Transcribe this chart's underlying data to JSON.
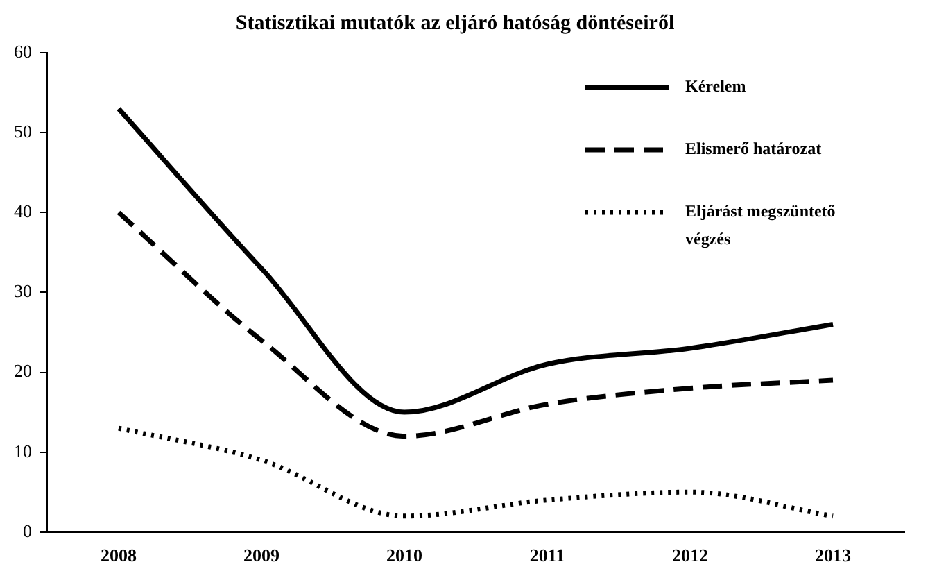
{
  "chart_data": {
    "type": "line",
    "title": "Statisztikai mutatók az eljáró hatóság döntéseiről",
    "categories": [
      "2008",
      "2009",
      "2010",
      "2011",
      "2012",
      "2013"
    ],
    "series": [
      {
        "name": "Kérelem",
        "color": "#000000",
        "line_style": "solid",
        "values": [
          53,
          33,
          15,
          21,
          23,
          26
        ]
      },
      {
        "name": "Elismerő határozat",
        "color": "#000000",
        "line_style": "dashed",
        "values": [
          40,
          24,
          12,
          16,
          18,
          19
        ]
      },
      {
        "name": "Eljárást megszüntető végzés",
        "color": "#000000",
        "line_style": "dotted",
        "values": [
          13,
          9,
          2,
          4,
          5,
          2
        ]
      }
    ],
    "ylim": [
      0,
      60
    ],
    "yticks": [
      0,
      10,
      20,
      30,
      40,
      50,
      60
    ],
    "grid": false,
    "legend": "top right",
    "marker": "none"
  }
}
